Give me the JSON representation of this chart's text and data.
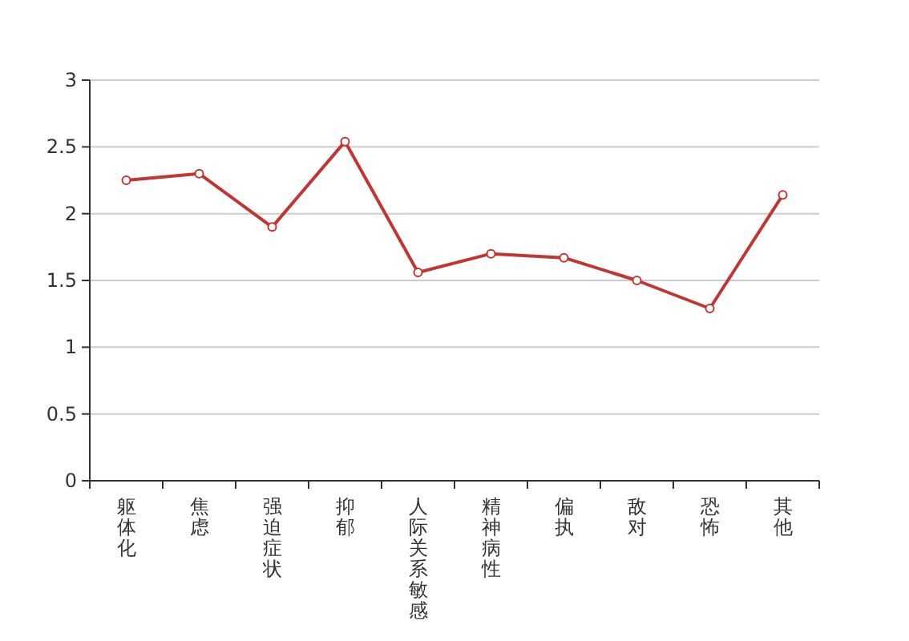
{
  "chart_data": {
    "type": "line",
    "categories": [
      "躯体化",
      "焦虑",
      "强迫症状",
      "抑郁",
      "人际关系敏感",
      "精神病性",
      "偏执",
      "敌对",
      "恐怖",
      "其他"
    ],
    "series": [
      {
        "color": "#c23531",
        "values": [
          2.25,
          2.3,
          1.9,
          2.54,
          1.56,
          1.7,
          1.67,
          1.5,
          1.29,
          2.14
        ]
      }
    ],
    "ylim": [
      0,
      3
    ],
    "yticks": [
      0,
      0.5,
      1,
      1.5,
      2,
      2.5,
      3
    ],
    "grid": "y",
    "marker": "circle",
    "line_style": "solid"
  }
}
